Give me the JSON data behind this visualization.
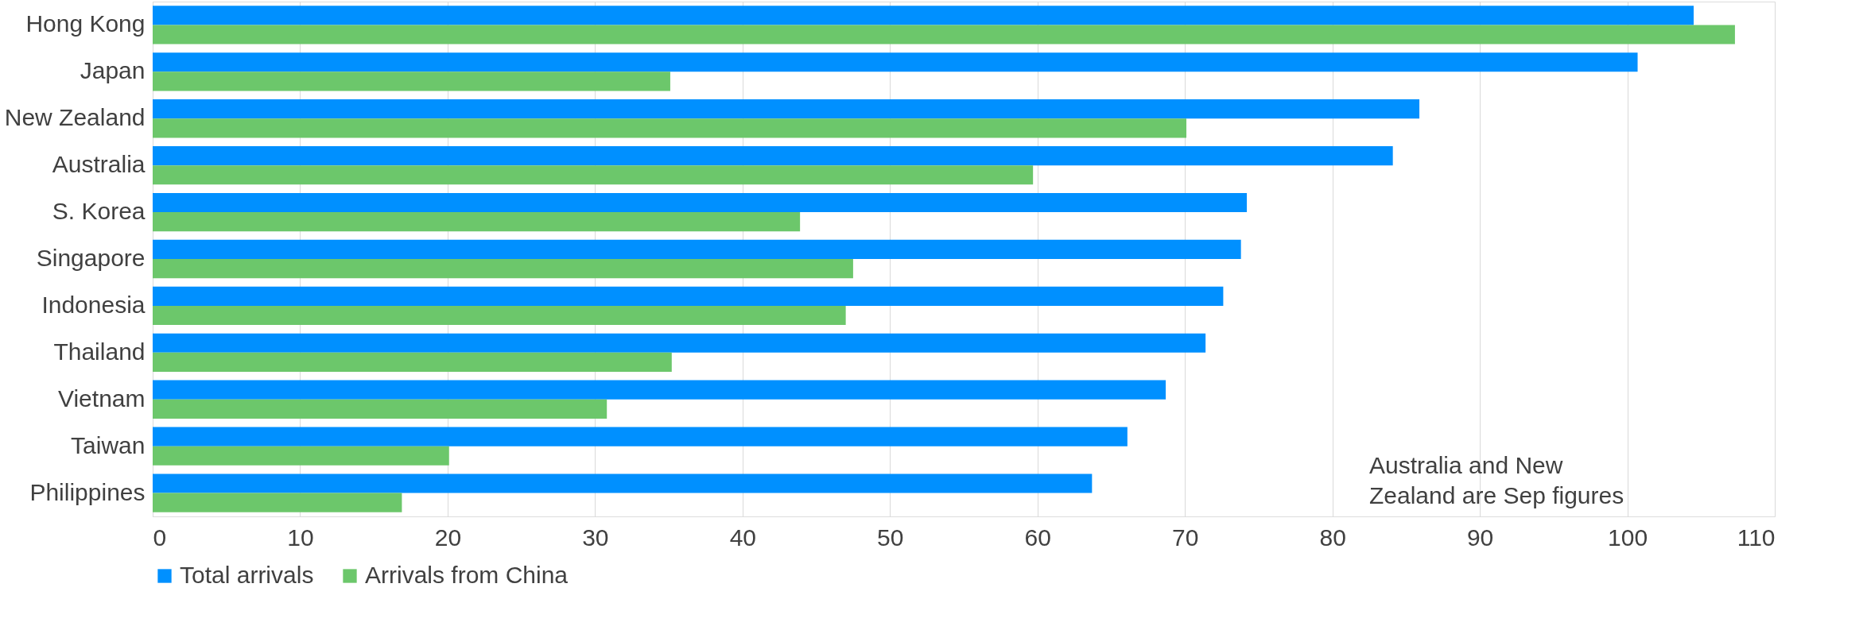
{
  "chart_data": {
    "type": "bar",
    "orientation": "horizontal",
    "categories": [
      "Hong Kong",
      "Japan",
      "New Zealand",
      "Australia",
      "S. Korea",
      "Singapore",
      "Indonesia",
      "Thailand",
      "Vietnam",
      "Taiwan",
      "Philippines"
    ],
    "series": [
      {
        "name": "Total arrivals",
        "color": "#0090ff",
        "values": [
          104.5,
          100.7,
          85.9,
          84.1,
          74.2,
          73.8,
          72.6,
          71.4,
          68.7,
          66.1,
          63.7
        ]
      },
      {
        "name": "Arrivals from China",
        "color": "#6cc76b",
        "values": [
          107.3,
          35.1,
          70.1,
          59.7,
          43.9,
          47.5,
          47.0,
          35.2,
          30.8,
          20.1,
          16.9
        ]
      }
    ],
    "xlim": [
      0,
      110
    ],
    "xticks": [
      0,
      10,
      20,
      30,
      40,
      50,
      60,
      70,
      80,
      90,
      100,
      110
    ],
    "grid": "x",
    "legend": "bottom",
    "annotations": [
      "Australia and New\nZealand are Sep figures"
    ]
  }
}
